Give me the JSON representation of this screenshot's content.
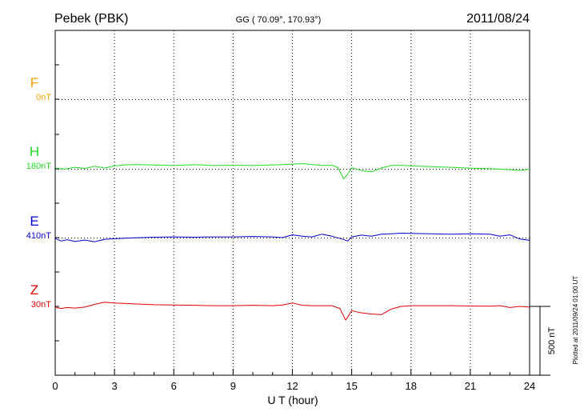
{
  "chart_data": {
    "type": "line",
    "title_left": "Pebek (PBK)",
    "title_center": "GG ( 70.09°, 170.93°)",
    "title_right": "2011/08/24",
    "xlabel": "U T (hour)",
    "xlim": [
      0,
      24
    ],
    "xticks": [
      "0",
      "3",
      "6",
      "9",
      "12",
      "15",
      "18",
      "21",
      "24"
    ],
    "scale_label": "500 nT",
    "scale_nT": 500,
    "footer": "Plotted at 2011/09/24 01:00 UT",
    "grid": true,
    "series": [
      {
        "name": "F",
        "baseline_label": "0nT",
        "color": "#f5a000",
        "values": []
      },
      {
        "name": "H",
        "baseline_label": "180nT",
        "color": "#22dd22",
        "x": [
          0,
          0.5,
          1,
          1.5,
          2,
          2.5,
          3,
          3.5,
          4,
          5,
          6,
          7,
          8,
          9,
          10,
          11,
          12,
          12.5,
          13,
          13.5,
          14,
          14.3,
          14.6,
          14.8,
          15,
          15.3,
          15.6,
          16,
          16.5,
          17,
          17.5,
          18,
          19,
          20,
          21,
          22,
          23,
          23.5,
          24
        ],
        "values": [
          0,
          -8,
          5,
          -3,
          12,
          0,
          15,
          22,
          25,
          22,
          18,
          24,
          18,
          20,
          18,
          22,
          28,
          32,
          25,
          18,
          20,
          5,
          -80,
          -45,
          2,
          -10,
          -22,
          -28,
          0,
          18,
          20,
          15,
          10,
          5,
          -2,
          -5,
          -12,
          -18,
          -8
        ]
      },
      {
        "name": "E",
        "baseline_label": "410nT",
        "color": "#0000cc",
        "x": [
          0,
          0.3,
          0.6,
          1,
          1.5,
          2,
          2.5,
          3,
          4,
          5,
          6,
          7,
          8,
          9,
          10,
          11,
          11.5,
          12,
          12.5,
          13,
          13.5,
          14,
          14.5,
          14.8,
          15,
          15.5,
          16,
          16.5,
          17,
          17.5,
          18,
          19,
          20,
          21,
          22,
          22.5,
          23,
          23.5,
          24
        ],
        "values": [
          -5,
          -25,
          -15,
          -28,
          -18,
          -30,
          -12,
          -8,
          -2,
          3,
          5,
          3,
          5,
          5,
          8,
          5,
          0,
          20,
          10,
          5,
          25,
          10,
          -10,
          -25,
          5,
          18,
          10,
          25,
          28,
          32,
          30,
          28,
          25,
          28,
          25,
          10,
          20,
          -10,
          -20
        ]
      },
      {
        "name": "Z",
        "baseline_label": "30nT",
        "color": "#dd0000",
        "x": [
          0,
          0.3,
          0.6,
          1,
          1.5,
          2,
          2.5,
          3,
          4,
          5,
          6,
          7,
          8,
          9,
          10,
          11,
          11.5,
          12,
          12.5,
          13,
          14,
          14.4,
          14.7,
          15,
          15.4,
          16,
          16.5,
          17,
          17.5,
          18,
          19,
          20,
          21,
          22,
          22.5,
          23,
          23.5,
          24
        ],
        "values": [
          -5,
          -15,
          -8,
          -12,
          -5,
          15,
          30,
          25,
          18,
          12,
          10,
          8,
          5,
          5,
          8,
          5,
          10,
          25,
          8,
          5,
          5,
          -15,
          -100,
          -30,
          -45,
          -55,
          -60,
          -20,
          0,
          5,
          5,
          5,
          3,
          2,
          5,
          -8,
          0,
          -5
        ]
      }
    ]
  }
}
